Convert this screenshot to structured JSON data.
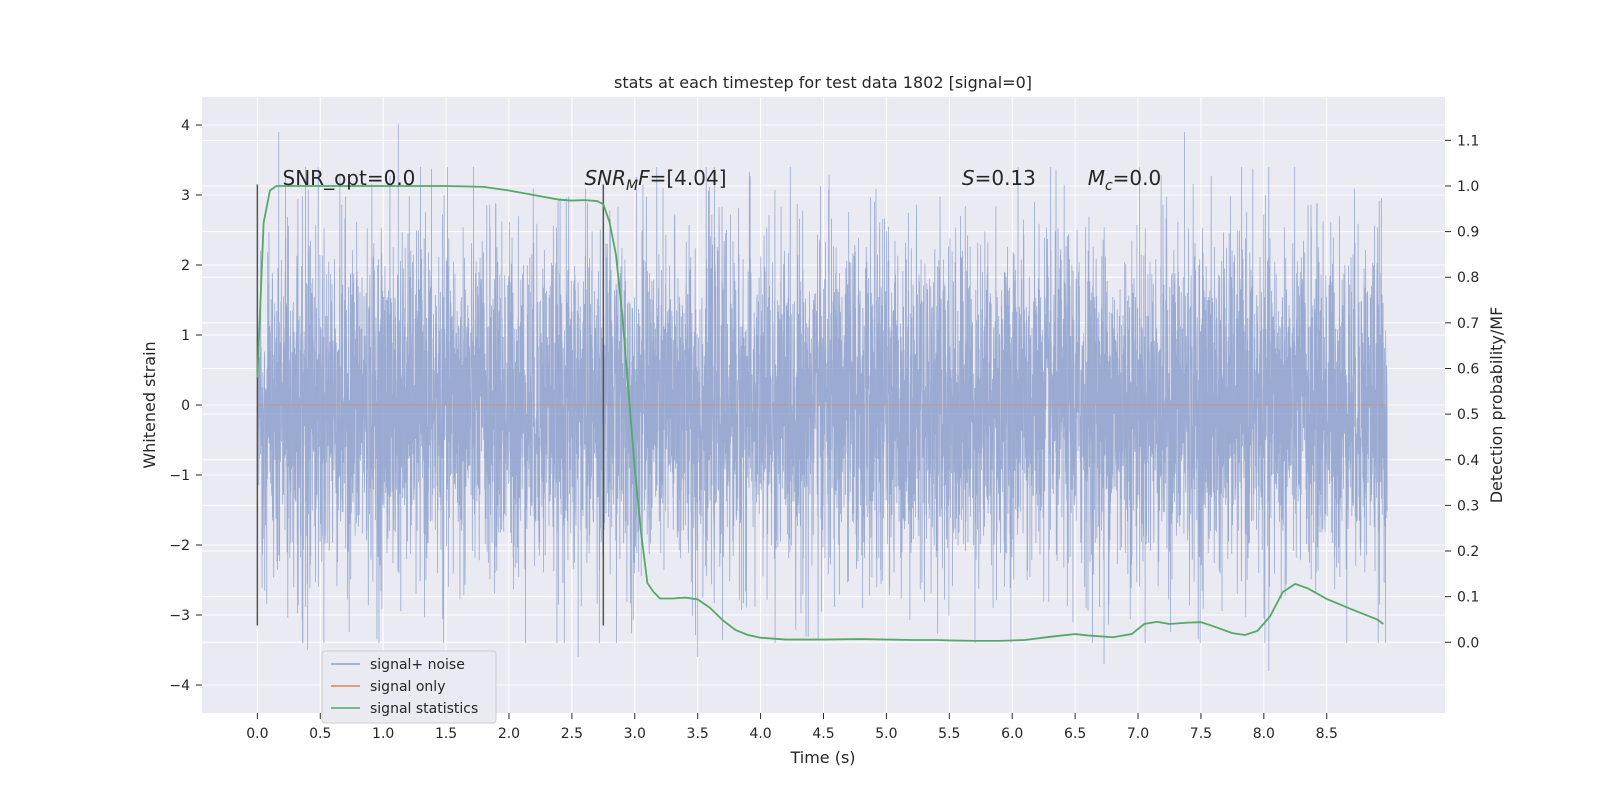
{
  "chart_data": {
    "type": "line",
    "title": "stats at each timestep for test data 1802 [signal=0]",
    "xlabel": "Time (s)",
    "ylabel": "Whitened strain",
    "y2label": "Detection probability/MF",
    "xlim": [
      -0.44,
      9.44
    ],
    "ylim": [
      -4.4,
      4.4
    ],
    "y2lim": [
      -0.155,
      1.195
    ],
    "x_ticks": [
      0.0,
      0.5,
      1.0,
      1.5,
      2.0,
      2.5,
      3.0,
      3.5,
      4.0,
      4.5,
      5.0,
      5.5,
      6.0,
      6.5,
      7.0,
      7.5,
      8.0,
      8.5
    ],
    "x_tick_labels": [
      "0.0",
      "0.5",
      "1.0",
      "1.5",
      "2.0",
      "2.5",
      "3.0",
      "3.5",
      "4.0",
      "4.5",
      "5.0",
      "5.5",
      "6.0",
      "6.5",
      "7.0",
      "7.5",
      "8.0",
      "8.5"
    ],
    "y_ticks": [
      -4,
      -3,
      -2,
      -1,
      0,
      1,
      2,
      3,
      4
    ],
    "y_tick_labels": [
      "−4",
      "−3",
      "−2",
      "−1",
      "0",
      "1",
      "2",
      "3",
      "4"
    ],
    "y2_ticks": [
      0.0,
      0.1,
      0.2,
      0.3,
      0.4,
      0.5,
      0.6,
      0.7,
      0.8,
      0.9,
      1.0,
      1.1
    ],
    "y2_tick_labels": [
      "0.0",
      "0.1",
      "0.2",
      "0.3",
      "0.4",
      "0.5",
      "0.6",
      "0.7",
      "0.8",
      "0.9",
      "1.0",
      "1.1"
    ],
    "grid": true,
    "legend_position": "lower-left",
    "series": [
      {
        "name": "signal+ noise",
        "color": "#8c9fcb",
        "axis": "left",
        "x_range": [
          0.0,
          8.98
        ],
        "typical_amplitude": 1.2,
        "peaks": [
          [
            0.17,
            3.9
          ],
          [
            1.12,
            4.02
          ],
          [
            0.4,
            -3.5
          ],
          [
            2.55,
            -3.6
          ],
          [
            3.5,
            -3.6
          ],
          [
            5.99,
            -3.4
          ],
          [
            6.73,
            -3.7
          ],
          [
            7.37,
            3.9
          ],
          [
            8.04,
            -3.8
          ]
        ]
      },
      {
        "name": "signal only",
        "color": "#dd8452",
        "axis": "left",
        "x": [
          0.0,
          8.98
        ],
        "y": [
          0.0,
          0.0
        ]
      },
      {
        "name": "signal statistics",
        "color": "#55a868",
        "axis": "right",
        "x": [
          0.0,
          0.05,
          0.1,
          0.15,
          0.25,
          0.5,
          1.0,
          1.5,
          1.8,
          2.0,
          2.2,
          2.4,
          2.5,
          2.6,
          2.7,
          2.75,
          2.8,
          2.85,
          2.9,
          2.95,
          3.0,
          3.05,
          3.1,
          3.15,
          3.2,
          3.3,
          3.4,
          3.5,
          3.6,
          3.7,
          3.8,
          3.9,
          4.0,
          4.2,
          4.5,
          4.8,
          5.0,
          5.2,
          5.4,
          5.5,
          5.7,
          5.9,
          6.1,
          6.3,
          6.5,
          6.6,
          6.8,
          6.95,
          7.05,
          7.15,
          7.25,
          7.4,
          7.5,
          7.6,
          7.75,
          7.85,
          7.95,
          8.05,
          8.15,
          8.25,
          8.35,
          8.5,
          8.7,
          8.9,
          8.95
        ],
        "y": [
          0.58,
          0.92,
          0.99,
          1.0,
          1.0,
          1.0,
          1.0,
          1.0,
          0.998,
          0.99,
          0.98,
          0.97,
          0.968,
          0.969,
          0.967,
          0.96,
          0.92,
          0.85,
          0.72,
          0.55,
          0.38,
          0.24,
          0.13,
          0.11,
          0.096,
          0.096,
          0.098,
          0.094,
          0.075,
          0.048,
          0.027,
          0.016,
          0.01,
          0.006,
          0.006,
          0.007,
          0.006,
          0.005,
          0.005,
          0.004,
          0.003,
          0.003,
          0.005,
          0.012,
          0.018,
          0.015,
          0.011,
          0.018,
          0.04,
          0.045,
          0.04,
          0.043,
          0.044,
          0.035,
          0.02,
          0.016,
          0.025,
          0.057,
          0.11,
          0.128,
          0.118,
          0.095,
          0.072,
          0.05,
          0.04
        ]
      }
    ],
    "vertical_lines": [
      0.0,
      2.75
    ],
    "annotations": [
      {
        "x": 0.2,
        "text_plain": "SNR_opt=0.0"
      },
      {
        "x": 2.6,
        "text_italic": "SNR",
        "text_sub": "M",
        "text_italic2": "F",
        "text_rest": "=[4.04]"
      },
      {
        "x": 5.6,
        "text_italic": "S",
        "text_rest": "=0.13"
      },
      {
        "x": 6.6,
        "text_italic": "M",
        "text_sub": "c",
        "text_rest": "=0.0"
      }
    ],
    "legend": [
      "signal+ noise",
      "signal only",
      "signal statistics"
    ]
  }
}
